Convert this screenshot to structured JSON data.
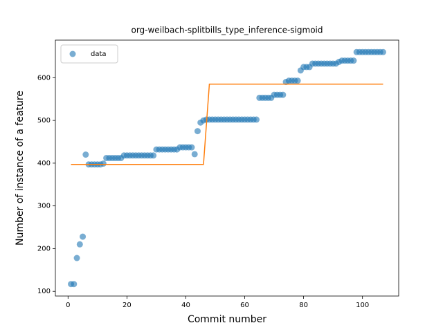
{
  "chart_data": {
    "type": "scatter",
    "title": "org-weilbach-splitbills_type_inference-sigmoid",
    "xlabel": "Commit number",
    "ylabel": "Number of instance of a feature",
    "xlim": [
      -4.3,
      112.3
    ],
    "ylim": [
      89,
      688
    ],
    "xticks": [
      0,
      20,
      40,
      60,
      80,
      100
    ],
    "yticks": [
      100,
      200,
      300,
      400,
      500,
      600
    ],
    "legend": "upper left",
    "series": [
      {
        "name": "data",
        "type": "scatter",
        "color": "#1f77b4",
        "x": [
          1,
          2,
          3,
          4,
          5,
          6,
          7,
          8,
          9,
          10,
          11,
          12,
          13,
          14,
          15,
          16,
          17,
          18,
          19,
          20,
          21,
          22,
          23,
          24,
          25,
          26,
          27,
          28,
          29,
          30,
          31,
          32,
          33,
          34,
          35,
          36,
          37,
          38,
          39,
          40,
          41,
          42,
          43,
          44,
          45,
          46,
          47,
          48,
          49,
          50,
          51,
          52,
          53,
          54,
          55,
          56,
          57,
          58,
          59,
          60,
          61,
          62,
          63,
          64,
          65,
          66,
          67,
          68,
          69,
          70,
          71,
          72,
          73,
          74,
          75,
          76,
          77,
          78,
          79,
          80,
          81,
          82,
          83,
          84,
          85,
          86,
          87,
          88,
          89,
          90,
          91,
          92,
          93,
          94,
          95,
          96,
          97,
          98,
          99,
          100,
          101,
          102,
          103,
          104,
          105,
          106,
          107
        ],
        "values": [
          117,
          117,
          178,
          210,
          228,
          420,
          397,
          397,
          397,
          397,
          397,
          399,
          412,
          412,
          412,
          412,
          412,
          412,
          418,
          418,
          418,
          418,
          418,
          418,
          418,
          418,
          418,
          418,
          418,
          432,
          432,
          432,
          432,
          432,
          432,
          432,
          432,
          437,
          437,
          437,
          437,
          437,
          421,
          475,
          495,
          500,
          502,
          502,
          502,
          502,
          502,
          502,
          502,
          502,
          502,
          502,
          502,
          502,
          502,
          502,
          502,
          502,
          502,
          502,
          553,
          553,
          553,
          553,
          553,
          560,
          560,
          560,
          560,
          590,
          593,
          593,
          593,
          593,
          617,
          625,
          625,
          625,
          633,
          633,
          633,
          633,
          633,
          633,
          633,
          633,
          633,
          637,
          640,
          640,
          640,
          640,
          640,
          660,
          660,
          660,
          660,
          660,
          660,
          660,
          660,
          660,
          660
        ]
      },
      {
        "type": "line",
        "color": "#ff7f0e",
        "x": [
          1,
          46,
          48,
          107
        ],
        "values": [
          397,
          397,
          585,
          585
        ]
      }
    ]
  }
}
